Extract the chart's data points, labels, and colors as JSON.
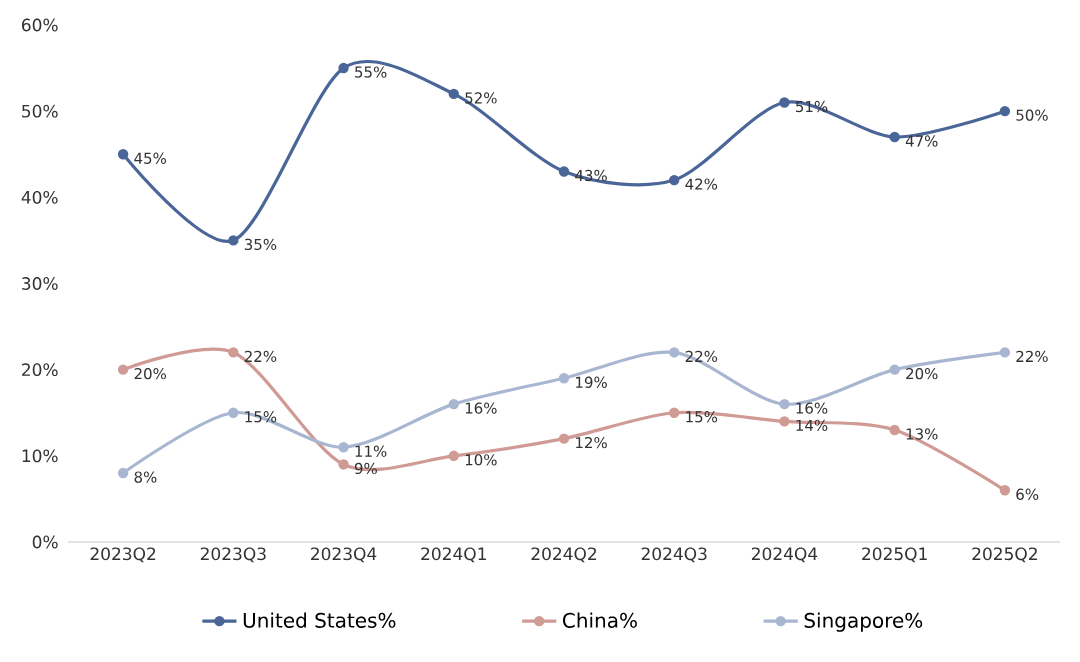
{
  "chart_data": {
    "type": "line",
    "categories": [
      "2023Q2",
      "2023Q3",
      "2023Q4",
      "2024Q1",
      "2024Q2",
      "2024Q3",
      "2024Q4",
      "2025Q1",
      "2025Q2"
    ],
    "series": [
      {
        "name": "United States%",
        "color": "#4a6598",
        "values": [
          45,
          35,
          55,
          52,
          43,
          42,
          51,
          47,
          50
        ],
        "value_labels": [
          "45%",
          "35%",
          "55%",
          "52%",
          "43%",
          "42%",
          "51%",
          "47%",
          "50%"
        ]
      },
      {
        "name": "China%",
        "color": "#d09a95",
        "values": [
          20,
          22,
          9,
          10,
          12,
          15,
          14,
          13,
          6
        ],
        "value_labels": [
          "20%",
          "22%",
          "9%",
          "10%",
          "12%",
          "15%",
          "14%",
          "13%",
          "6%"
        ]
      },
      {
        "name": "Singapore%",
        "color": "#a9b6d2",
        "values": [
          8,
          15,
          11,
          16,
          19,
          22,
          16,
          20,
          22
        ],
        "value_labels": [
          "8%",
          "15%",
          "11%",
          "16%",
          "19%",
          "22%",
          "16%",
          "20%",
          "22%"
        ]
      }
    ],
    "ylim": [
      0,
      60
    ],
    "yticks": [
      {
        "value": 0,
        "label": "0%"
      },
      {
        "value": 10,
        "label": "10%"
      },
      {
        "value": 20,
        "label": "20%"
      },
      {
        "value": 30,
        "label": "30%"
      },
      {
        "value": 40,
        "label": "40%"
      },
      {
        "value": 50,
        "label": "50%"
      },
      {
        "value": 60,
        "label": "60%"
      }
    ],
    "grid": false,
    "legend": "bottom",
    "marker": "circle",
    "line_style": "solid"
  }
}
